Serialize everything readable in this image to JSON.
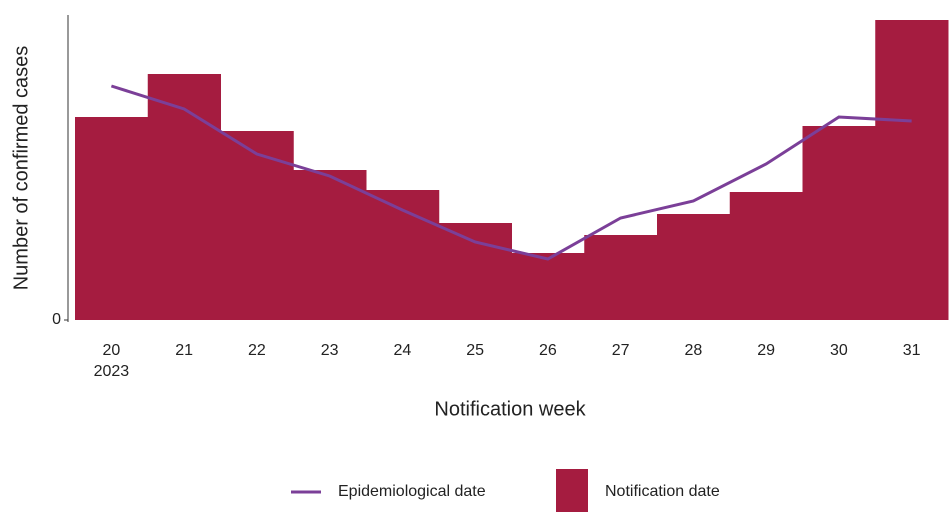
{
  "chart_data": {
    "type": "bar_line",
    "categories": [
      "20",
      "21",
      "22",
      "23",
      "24",
      "25",
      "26",
      "27",
      "28",
      "29",
      "30",
      "31"
    ],
    "x_year_label": "2023",
    "x_label": "Notification week",
    "y_label": "Number of confirmed cases",
    "ylim": [
      0,
      305
    ],
    "yticks": [
      0
    ],
    "series": [
      {
        "name": "Epidemiological date",
        "type": "line",
        "color": "#7b3f98",
        "values": [
          234,
          211,
          166,
          144,
          110,
          78,
          61,
          102,
          119,
          156,
          203,
          199
        ]
      },
      {
        "name": "Notification date",
        "type": "bar",
        "color": "#a51c40",
        "values": [
          203,
          246,
          189,
          150,
          130,
          97,
          67,
          85,
          106,
          128,
          194,
          300
        ]
      }
    ]
  }
}
